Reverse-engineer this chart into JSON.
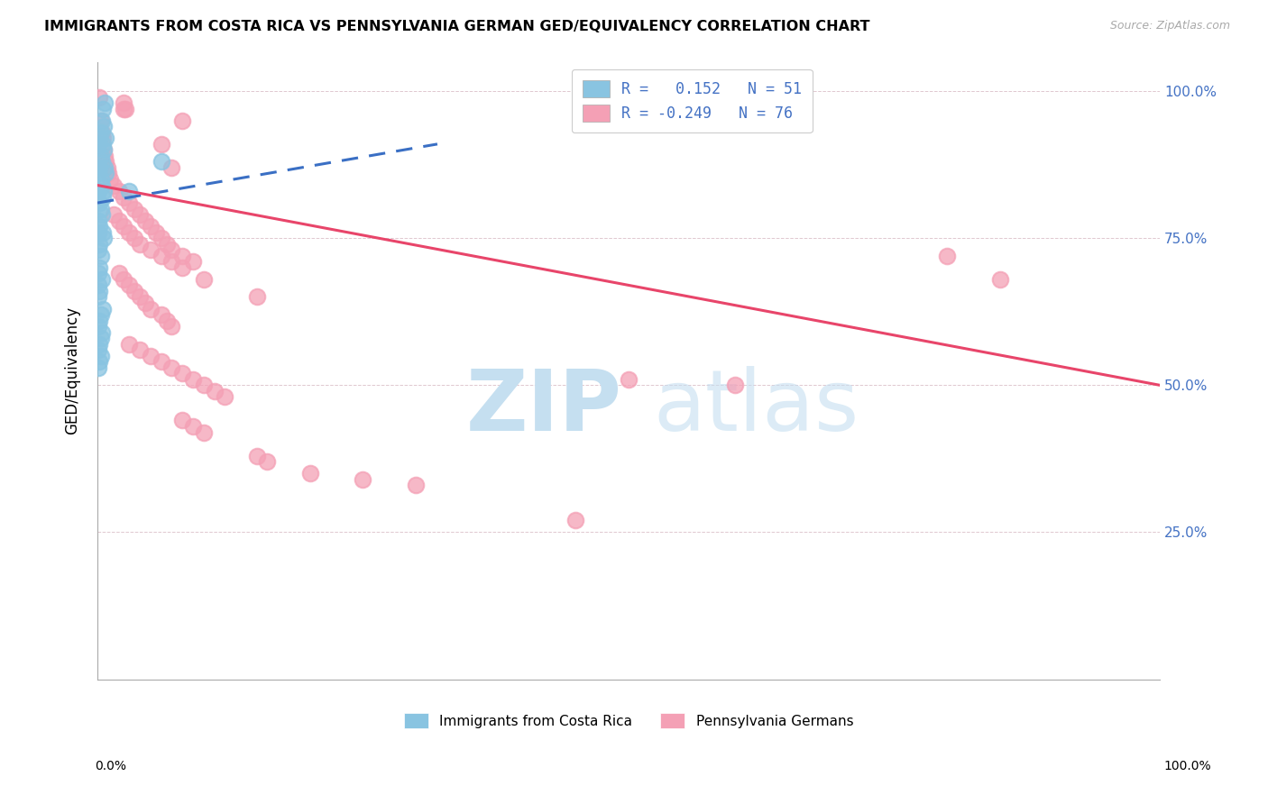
{
  "title": "IMMIGRANTS FROM COSTA RICA VS PENNSYLVANIA GERMAN GED/EQUIVALENCY CORRELATION CHART",
  "source": "Source: ZipAtlas.com",
  "ylabel": "GED/Equivalency",
  "blue_color": "#89c4e1",
  "pink_color": "#f4a0b5",
  "trendline_blue_color": "#3a6fc4",
  "trendline_pink_color": "#e8456a",
  "xlim": [
    0.0,
    1.0
  ],
  "ylim": [
    0.0,
    1.05
  ],
  "yticks": [
    0.0,
    0.25,
    0.5,
    0.75,
    1.0
  ],
  "ytick_labels": [
    "",
    "25.0%",
    "50.0%",
    "75.0%",
    "100.0%"
  ],
  "blue_scatter": [
    [
      0.005,
      0.97
    ],
    [
      0.007,
      0.98
    ],
    [
      0.004,
      0.95
    ],
    [
      0.006,
      0.94
    ],
    [
      0.003,
      0.93
    ],
    [
      0.008,
      0.92
    ],
    [
      0.005,
      0.91
    ],
    [
      0.006,
      0.9
    ],
    [
      0.002,
      0.92
    ],
    [
      0.003,
      0.89
    ],
    [
      0.004,
      0.88
    ],
    [
      0.001,
      0.91
    ],
    [
      0.007,
      0.87
    ],
    [
      0.008,
      0.86
    ],
    [
      0.002,
      0.87
    ],
    [
      0.001,
      0.86
    ],
    [
      0.003,
      0.85
    ],
    [
      0.004,
      0.84
    ],
    [
      0.006,
      0.83
    ],
    [
      0.005,
      0.82
    ],
    [
      0.001,
      0.83
    ],
    [
      0.002,
      0.81
    ],
    [
      0.003,
      0.8
    ],
    [
      0.004,
      0.79
    ],
    [
      0.001,
      0.78
    ],
    [
      0.002,
      0.77
    ],
    [
      0.005,
      0.76
    ],
    [
      0.006,
      0.75
    ],
    [
      0.001,
      0.76
    ],
    [
      0.002,
      0.74
    ],
    [
      0.003,
      0.72
    ],
    [
      0.001,
      0.73
    ],
    [
      0.002,
      0.7
    ],
    [
      0.001,
      0.69
    ],
    [
      0.004,
      0.68
    ],
    [
      0.001,
      0.67
    ],
    [
      0.002,
      0.66
    ],
    [
      0.001,
      0.65
    ],
    [
      0.06,
      0.88
    ],
    [
      0.03,
      0.83
    ],
    [
      0.005,
      0.63
    ],
    [
      0.003,
      0.62
    ],
    [
      0.002,
      0.61
    ],
    [
      0.001,
      0.6
    ],
    [
      0.004,
      0.59
    ],
    [
      0.003,
      0.58
    ],
    [
      0.002,
      0.57
    ],
    [
      0.001,
      0.56
    ],
    [
      0.003,
      0.55
    ],
    [
      0.002,
      0.54
    ],
    [
      0.001,
      0.53
    ]
  ],
  "pink_scatter": [
    [
      0.002,
      0.99
    ],
    [
      0.025,
      0.97
    ],
    [
      0.025,
      0.98
    ],
    [
      0.026,
      0.97
    ],
    [
      0.003,
      0.95
    ],
    [
      0.08,
      0.95
    ],
    [
      0.004,
      0.93
    ],
    [
      0.005,
      0.92
    ],
    [
      0.06,
      0.91
    ],
    [
      0.006,
      0.9
    ],
    [
      0.007,
      0.89
    ],
    [
      0.008,
      0.88
    ],
    [
      0.009,
      0.87
    ],
    [
      0.01,
      0.86
    ],
    [
      0.012,
      0.85
    ],
    [
      0.07,
      0.87
    ],
    [
      0.015,
      0.84
    ],
    [
      0.02,
      0.83
    ],
    [
      0.025,
      0.82
    ],
    [
      0.03,
      0.81
    ],
    [
      0.035,
      0.8
    ],
    [
      0.04,
      0.79
    ],
    [
      0.045,
      0.78
    ],
    [
      0.05,
      0.77
    ],
    [
      0.055,
      0.76
    ],
    [
      0.06,
      0.75
    ],
    [
      0.065,
      0.74
    ],
    [
      0.07,
      0.73
    ],
    [
      0.08,
      0.72
    ],
    [
      0.09,
      0.71
    ],
    [
      0.015,
      0.79
    ],
    [
      0.02,
      0.78
    ],
    [
      0.025,
      0.77
    ],
    [
      0.03,
      0.76
    ],
    [
      0.035,
      0.75
    ],
    [
      0.04,
      0.74
    ],
    [
      0.05,
      0.73
    ],
    [
      0.06,
      0.72
    ],
    [
      0.07,
      0.71
    ],
    [
      0.08,
      0.7
    ],
    [
      0.02,
      0.69
    ],
    [
      0.025,
      0.68
    ],
    [
      0.03,
      0.67
    ],
    [
      0.035,
      0.66
    ],
    [
      0.04,
      0.65
    ],
    [
      0.045,
      0.64
    ],
    [
      0.05,
      0.63
    ],
    [
      0.06,
      0.62
    ],
    [
      0.065,
      0.61
    ],
    [
      0.07,
      0.6
    ],
    [
      0.1,
      0.68
    ],
    [
      0.15,
      0.65
    ],
    [
      0.03,
      0.57
    ],
    [
      0.04,
      0.56
    ],
    [
      0.05,
      0.55
    ],
    [
      0.06,
      0.54
    ],
    [
      0.07,
      0.53
    ],
    [
      0.08,
      0.52
    ],
    [
      0.09,
      0.51
    ],
    [
      0.1,
      0.5
    ],
    [
      0.11,
      0.49
    ],
    [
      0.12,
      0.48
    ],
    [
      0.08,
      0.44
    ],
    [
      0.09,
      0.43
    ],
    [
      0.1,
      0.42
    ],
    [
      0.15,
      0.38
    ],
    [
      0.16,
      0.37
    ],
    [
      0.2,
      0.35
    ],
    [
      0.25,
      0.34
    ],
    [
      0.3,
      0.33
    ],
    [
      0.45,
      0.27
    ],
    [
      0.5,
      0.51
    ],
    [
      0.6,
      0.5
    ],
    [
      0.8,
      0.72
    ],
    [
      0.85,
      0.68
    ]
  ],
  "blue_trend_x": [
    0.0,
    0.32
  ],
  "blue_trend_y": [
    0.81,
    0.91
  ],
  "pink_trend_x": [
    0.0,
    1.0
  ],
  "pink_trend_y": [
    0.84,
    0.5
  ]
}
